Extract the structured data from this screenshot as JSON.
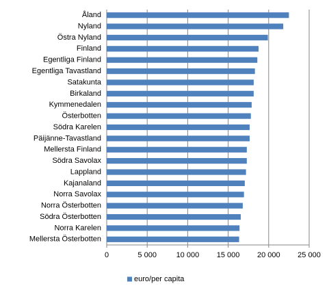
{
  "chart_data": {
    "type": "bar",
    "orientation": "horizontal",
    "categories": [
      "Åland",
      "Nyland",
      "Östra Nyland",
      "Finland",
      "Egentliga Finland",
      "Egentliga Tavastland",
      "Satakunta",
      "Birkaland",
      "Kymmenedalen",
      "Österbotten",
      "Södra Karelen",
      "Päijänne-Tavastland",
      "Mellersta Finland",
      "Södra Savolax",
      "Lappland",
      "Kajanaland",
      "Norra Savolax",
      "Norra Österbotten",
      "Södra Österbotten",
      "Norra Karelen",
      "Mellersta Österbotten"
    ],
    "series": [
      {
        "name": "euro/per capita",
        "color": "#4f81bd",
        "values": [
          22500,
          21800,
          19900,
          18750,
          18600,
          18300,
          18150,
          18150,
          17900,
          17800,
          17650,
          17650,
          17300,
          17300,
          17200,
          17050,
          16950,
          16800,
          16550,
          16400,
          16350
        ]
      }
    ],
    "xlim": [
      0,
      25000
    ],
    "xticks": [
      0,
      {
        "value": 5000,
        "label": "5 000"
      },
      {
        "value": 10000,
        "label": "10 000"
      },
      {
        "value": 15000,
        "label": "15 000"
      },
      {
        "value": 20000,
        "label": "20 000"
      },
      {
        "value": 25000,
        "label": "25 000"
      }
    ],
    "grid": true,
    "legend": "bottom"
  }
}
